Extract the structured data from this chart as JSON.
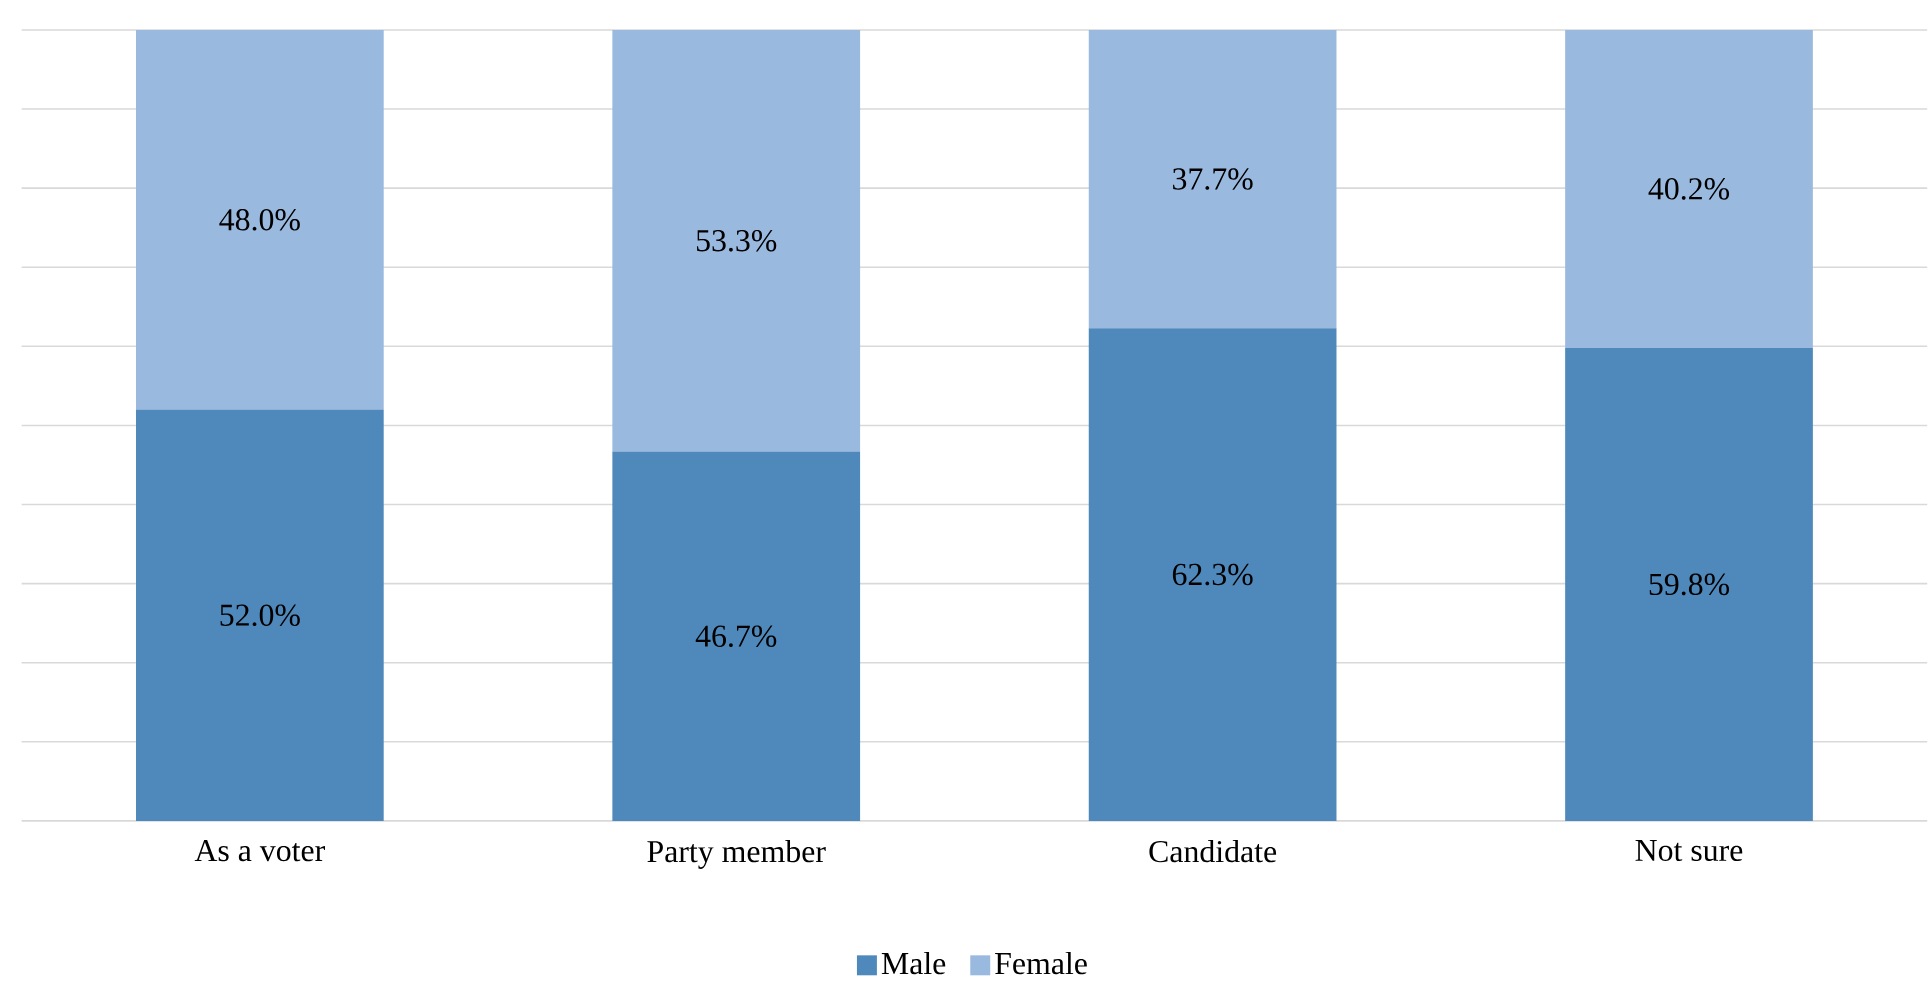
{
  "chart_data": {
    "type": "bar",
    "stacked": true,
    "categories": [
      "As a voter",
      "Party member",
      "Candidate",
      "Not sure"
    ],
    "series": [
      {
        "name": "Male",
        "color": "#4f88bb",
        "values": [
          52.0,
          46.7,
          62.3,
          59.8
        ],
        "value_labels": [
          "52.0%",
          "46.7%",
          "62.3%",
          "59.8%"
        ]
      },
      {
        "name": "Female",
        "color": "#9ab9df",
        "values": [
          48.0,
          53.3,
          37.7,
          40.2
        ],
        "value_labels": [
          "48.0%",
          "53.3%",
          "37.7%",
          "40.2%"
        ]
      }
    ],
    "ylim": [
      0,
      100
    ],
    "yticks": [
      {
        "value": 0,
        "label": null
      },
      {
        "value": 10,
        "label": null
      },
      {
        "value": 20,
        "label": null
      },
      {
        "value": 30,
        "label": null
      },
      {
        "value": 40,
        "label": null
      },
      {
        "value": 50,
        "label": null
      },
      {
        "value": 60,
        "label": null
      },
      {
        "value": 70,
        "label": null
      },
      {
        "value": 80,
        "label": null
      },
      {
        "value": 90,
        "label": null
      },
      {
        "value": 100,
        "label": null
      }
    ],
    "tick_labels": "x",
    "grid": "y",
    "legend": "bottom"
  }
}
